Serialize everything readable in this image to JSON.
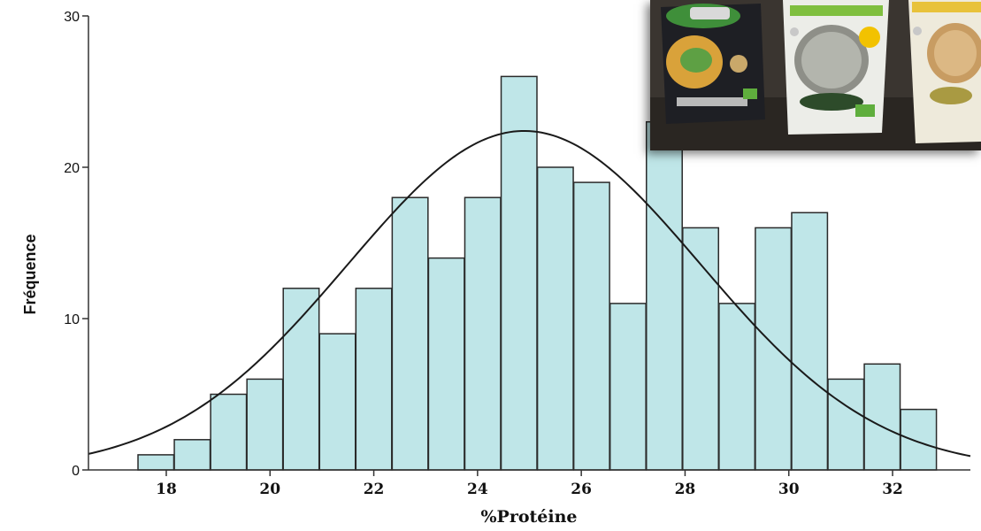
{
  "chart_data": {
    "type": "bar",
    "xlabel": "%Protéine",
    "ylabel": "Fréquence",
    "xlim": [
      16.5,
      33.5
    ],
    "ylim": [
      0,
      30
    ],
    "x_ticks": [
      18,
      20,
      22,
      24,
      26,
      28,
      30,
      32
    ],
    "y_ticks": [
      0,
      10,
      20,
      30
    ],
    "bin_width": 0.69,
    "bins": [
      {
        "x": 17.8,
        "count": 1
      },
      {
        "x": 18.5,
        "count": 2
      },
      {
        "x": 19.2,
        "count": 5
      },
      {
        "x": 19.9,
        "count": 6
      },
      {
        "x": 20.6,
        "count": 12
      },
      {
        "x": 21.3,
        "count": 9
      },
      {
        "x": 22.0,
        "count": 12
      },
      {
        "x": 22.7,
        "count": 18
      },
      {
        "x": 23.4,
        "count": 14
      },
      {
        "x": 24.1,
        "count": 18
      },
      {
        "x": 24.8,
        "count": 26
      },
      {
        "x": 25.5,
        "count": 20
      },
      {
        "x": 26.2,
        "count": 19
      },
      {
        "x": 26.9,
        "count": 11
      },
      {
        "x": 27.6,
        "count": 23
      },
      {
        "x": 28.3,
        "count": 16
      },
      {
        "x": 29.0,
        "count": 11
      },
      {
        "x": 29.7,
        "count": 16
      },
      {
        "x": 30.4,
        "count": 17
      },
      {
        "x": 31.1,
        "count": 6
      },
      {
        "x": 31.8,
        "count": 7
      },
      {
        "x": 32.5,
        "count": 4
      }
    ],
    "normal_curve": {
      "mean": 24.9,
      "sd": 3.4,
      "peak": 22.4
    },
    "colors": {
      "bar_fill": "#bfe6e8",
      "bar_stroke": "#2a2a2a",
      "curve": "#1a1a1a",
      "axis": "#333333"
    }
  },
  "inset_photo": {
    "description_icon": "pasta-packages-photo"
  }
}
